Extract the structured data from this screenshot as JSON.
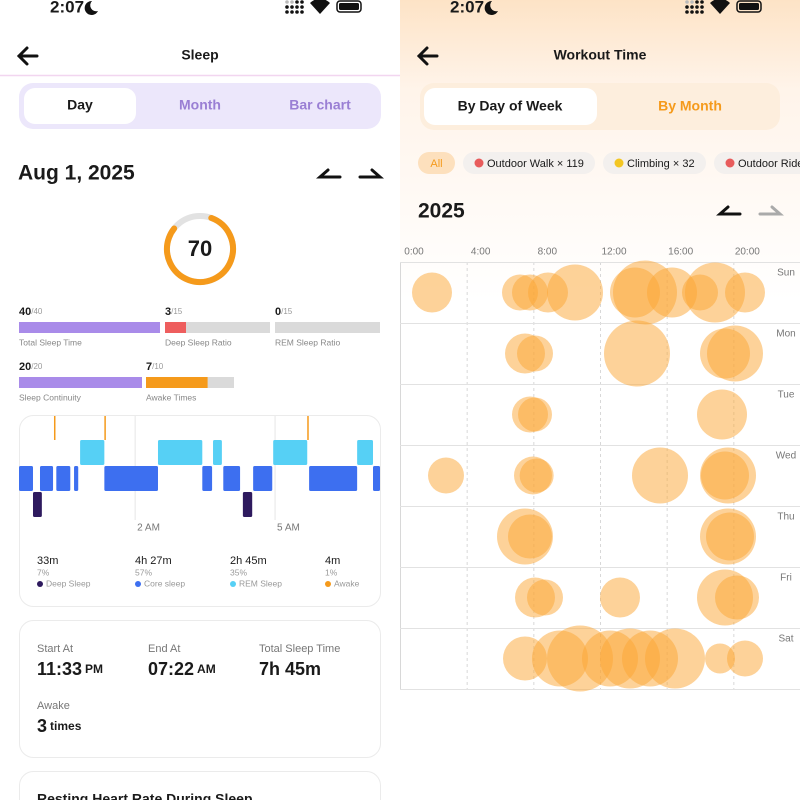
{
  "sleep": {
    "status_time": "2:07",
    "title": "Sleep",
    "tabs": [
      "Day",
      "Month",
      "Bar chart"
    ],
    "date": "Aug 1, 2025",
    "score": 70,
    "metrics": [
      {
        "value": 40,
        "max": 40,
        "max_label": "/40",
        "label": "Total Sleep Time",
        "color": "#a98be9"
      },
      {
        "value": 3,
        "max": 15,
        "max_label": "/15",
        "label": "Deep Sleep Ratio",
        "color": "#ee5e5e"
      },
      {
        "value": 0,
        "max": 15,
        "max_label": "/15",
        "label": "REM Sleep Ratio",
        "color": "#a98be9"
      },
      {
        "value": 20,
        "max": 20,
        "max_label": "/20",
        "label": "Sleep Continuity",
        "color": "#a98be9"
      },
      {
        "value": 7,
        "max": 10,
        "max_label": "/10",
        "label": "Awake Times",
        "color": "#f59a1b"
      }
    ],
    "stages_chart": {
      "xlim": [
        -0.49,
        7.25
      ],
      "xticks": [
        {
          "value": 2,
          "label": "2 AM"
        },
        {
          "value": 5,
          "label": "5 AM"
        }
      ],
      "segments": [
        {
          "stage": 0,
          "start": -0.19,
          "end": 0.0
        },
        {
          "stage": 0,
          "start": 4.31,
          "end": 4.51
        },
        {
          "stage": 1,
          "start": -0.49,
          "end": -0.19
        },
        {
          "stage": 1,
          "start": -0.04,
          "end": 0.24
        },
        {
          "stage": 1,
          "start": 0.31,
          "end": 0.61
        },
        {
          "stage": 1,
          "start": 0.69,
          "end": 0.78
        },
        {
          "stage": 1,
          "start": 1.34,
          "end": 2.49
        },
        {
          "stage": 1,
          "start": 3.44,
          "end": 3.65
        },
        {
          "stage": 1,
          "start": 3.89,
          "end": 4.25
        },
        {
          "stage": 1,
          "start": 4.53,
          "end": 4.94
        },
        {
          "stage": 1,
          "start": 5.73,
          "end": 6.76
        },
        {
          "stage": 1,
          "start": 7.1,
          "end": 7.25
        },
        {
          "stage": 2,
          "start": 0.82,
          "end": 1.34
        },
        {
          "stage": 2,
          "start": 2.49,
          "end": 3.44
        },
        {
          "stage": 2,
          "start": 3.67,
          "end": 3.86
        },
        {
          "stage": 2,
          "start": 4.96,
          "end": 5.69
        },
        {
          "stage": 2,
          "start": 6.76,
          "end": 7.1
        },
        {
          "stage": 3,
          "start": 0.26,
          "end": 0.28
        },
        {
          "stage": 3,
          "start": 1.34,
          "end": 1.36
        },
        {
          "stage": 3,
          "start": 5.69,
          "end": 5.71
        }
      ]
    },
    "stages": [
      {
        "name": "Deep Sleep",
        "duration": "33m",
        "percent": "7%",
        "color": "#2e1a5e"
      },
      {
        "name": "Core sleep",
        "duration": "4h 27m",
        "percent": "57%",
        "color": "#3d6ff0"
      },
      {
        "name": "REM Sleep",
        "duration": "2h 45m",
        "percent": "35%",
        "color": "#56d0f5"
      },
      {
        "name": "Awake",
        "duration": "4m",
        "percent": "1%",
        "color": "#f59a1b"
      }
    ],
    "summary": {
      "start_label": "Start At",
      "start": "11:33",
      "start_suffix": "PM",
      "end_label": "End At",
      "end": "07:22",
      "end_suffix": "AM",
      "total_label": "Total Sleep Time",
      "total": "7h 45m",
      "awake_label": "Awake",
      "awake": "3",
      "awake_unit": "times"
    },
    "next_card_title": "Resting Heart Rate During Sleep"
  },
  "workout": {
    "status_time": "2:07",
    "title": "Workout Time",
    "tabs": [
      "By Day of Week",
      "By Month"
    ],
    "filters": [
      {
        "label": "All"
      },
      {
        "label": "Outdoor Walk × 119",
        "color": "#e85c5c"
      },
      {
        "label": "Climbing × 32",
        "color": "#f3c623"
      },
      {
        "label": "Outdoor Ride",
        "color": "#e85c5c"
      }
    ],
    "year": "2025",
    "chart": {
      "type": "bubble",
      "color": "#fba534",
      "xlim": [
        0,
        24
      ],
      "xticks": [
        {
          "value": 0,
          "label": "0:00"
        },
        {
          "value": 4,
          "label": "4:00"
        },
        {
          "value": 8,
          "label": "8:00"
        },
        {
          "value": 12,
          "label": "12:00"
        },
        {
          "value": 16,
          "label": "16:00"
        },
        {
          "value": 20,
          "label": "20:00"
        }
      ],
      "rows": [
        {
          "day": "Sun",
          "bubbles": [
            {
              "hour": 1.92,
              "size": 20
            },
            {
              "hour": 7.2,
              "size": 18
            },
            {
              "hour": 7.8,
              "size": 18
            },
            {
              "hour": 8.88,
              "size": 20
            },
            {
              "hour": 10.5,
              "size": 28
            },
            {
              "hour": 14.1,
              "size": 25
            },
            {
              "hour": 14.7,
              "size": 32
            },
            {
              "hour": 16.32,
              "size": 25
            },
            {
              "hour": 18.0,
              "size": 18
            },
            {
              "hour": 18.9,
              "size": 30
            },
            {
              "hour": 20.7,
              "size": 20
            }
          ]
        },
        {
          "day": "Mon",
          "bubbles": [
            {
              "hour": 7.5,
              "size": 20
            },
            {
              "hour": 8.1,
              "size": 18
            },
            {
              "hour": 14.22,
              "size": 33
            },
            {
              "hour": 19.5,
              "size": 25
            },
            {
              "hour": 20.1,
              "size": 28
            }
          ]
        },
        {
          "day": "Tue",
          "bubbles": [
            {
              "hour": 7.8,
              "size": 18
            },
            {
              "hour": 8.1,
              "size": 17
            },
            {
              "hour": 19.32,
              "size": 25
            }
          ]
        },
        {
          "day": "Wed",
          "bubbles": [
            {
              "hour": 2.76,
              "size": 18
            },
            {
              "hour": 7.98,
              "size": 19
            },
            {
              "hour": 8.2,
              "size": 17
            },
            {
              "hour": 15.6,
              "size": 28
            },
            {
              "hour": 19.68,
              "size": 28
            },
            {
              "hour": 19.5,
              "size": 24
            }
          ]
        },
        {
          "day": "Thu",
          "bubbles": [
            {
              "hour": 7.5,
              "size": 28
            },
            {
              "hour": 7.8,
              "size": 22
            },
            {
              "hour": 19.68,
              "size": 28
            },
            {
              "hour": 19.8,
              "size": 24
            }
          ]
        },
        {
          "day": "Fri",
          "bubbles": [
            {
              "hour": 8.1,
              "size": 20
            },
            {
              "hour": 8.7,
              "size": 18
            },
            {
              "hour": 13.2,
              "size": 20
            },
            {
              "hour": 19.5,
              "size": 28
            },
            {
              "hour": 20.22,
              "size": 22
            }
          ]
        },
        {
          "day": "Sat",
          "bubbles": [
            {
              "hour": 7.5,
              "size": 22
            },
            {
              "hour": 9.6,
              "size": 28
            },
            {
              "hour": 10.8,
              "size": 33
            },
            {
              "hour": 12.6,
              "size": 28
            },
            {
              "hour": 13.8,
              "size": 30
            },
            {
              "hour": 15.0,
              "size": 28
            },
            {
              "hour": 16.5,
              "size": 30
            },
            {
              "hour": 19.2,
              "size": 15
            },
            {
              "hour": 20.7,
              "size": 18
            }
          ]
        }
      ]
    }
  }
}
